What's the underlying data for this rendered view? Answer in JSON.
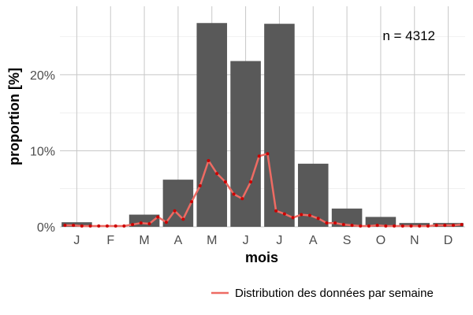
{
  "chart_data": {
    "type": "bar",
    "title": "",
    "xlabel": "mois",
    "ylabel": "proportion [%]",
    "categories": [
      "J",
      "F",
      "M",
      "A",
      "M",
      "J",
      "J",
      "A",
      "S",
      "O",
      "N",
      "D"
    ],
    "values": [
      0.6,
      0.2,
      1.6,
      6.2,
      26.8,
      21.8,
      26.7,
      8.3,
      2.4,
      1.3,
      0.5,
      0.5
    ],
    "bar_color": "#595959",
    "y_ticks": [
      0,
      10,
      20
    ],
    "y_tick_labels": [
      "0%",
      "10%",
      "20%"
    ],
    "ylim": [
      0,
      29
    ],
    "annotation": "n = 4312",
    "weekly_series": {
      "name": "Distribution des données par semaine",
      "line_color": "#ee6b63",
      "point_color": "#cc0000",
      "x": [
        0.15,
        0.4,
        0.65,
        0.9,
        1.15,
        1.4,
        1.65,
        1.9,
        2.15,
        2.4,
        2.65,
        2.9,
        3.15,
        3.4,
        3.65,
        3.9,
        4.15,
        4.4,
        4.65,
        4.9,
        5.15,
        5.4,
        5.65,
        5.9,
        6.15,
        6.4,
        6.65,
        6.9,
        7.15,
        7.4,
        7.65,
        7.9,
        8.15,
        8.4,
        8.65,
        8.9,
        9.15,
        9.4,
        9.65,
        9.9,
        10.15,
        10.4,
        10.65,
        10.9,
        11.15,
        11.4,
        11.65,
        11.9
      ],
      "values": [
        0.2,
        0.2,
        0.1,
        0.1,
        0.1,
        0.1,
        0.1,
        0.1,
        0.3,
        0.5,
        0.4,
        1.3,
        0.6,
        2.1,
        1.0,
        3.3,
        5.4,
        8.7,
        7.0,
        5.9,
        4.3,
        3.7,
        5.9,
        9.3,
        9.6,
        2.1,
        1.7,
        1.2,
        1.6,
        1.5,
        1.1,
        0.5,
        0.5,
        0.3,
        0.2,
        0.1,
        0.1,
        0.2,
        0.1,
        0.1,
        0.1,
        0.1,
        0.1,
        0.1,
        0.2,
        0.2,
        0.2,
        0.3
      ]
    },
    "legend_position": "bottom-right",
    "grid": true
  }
}
